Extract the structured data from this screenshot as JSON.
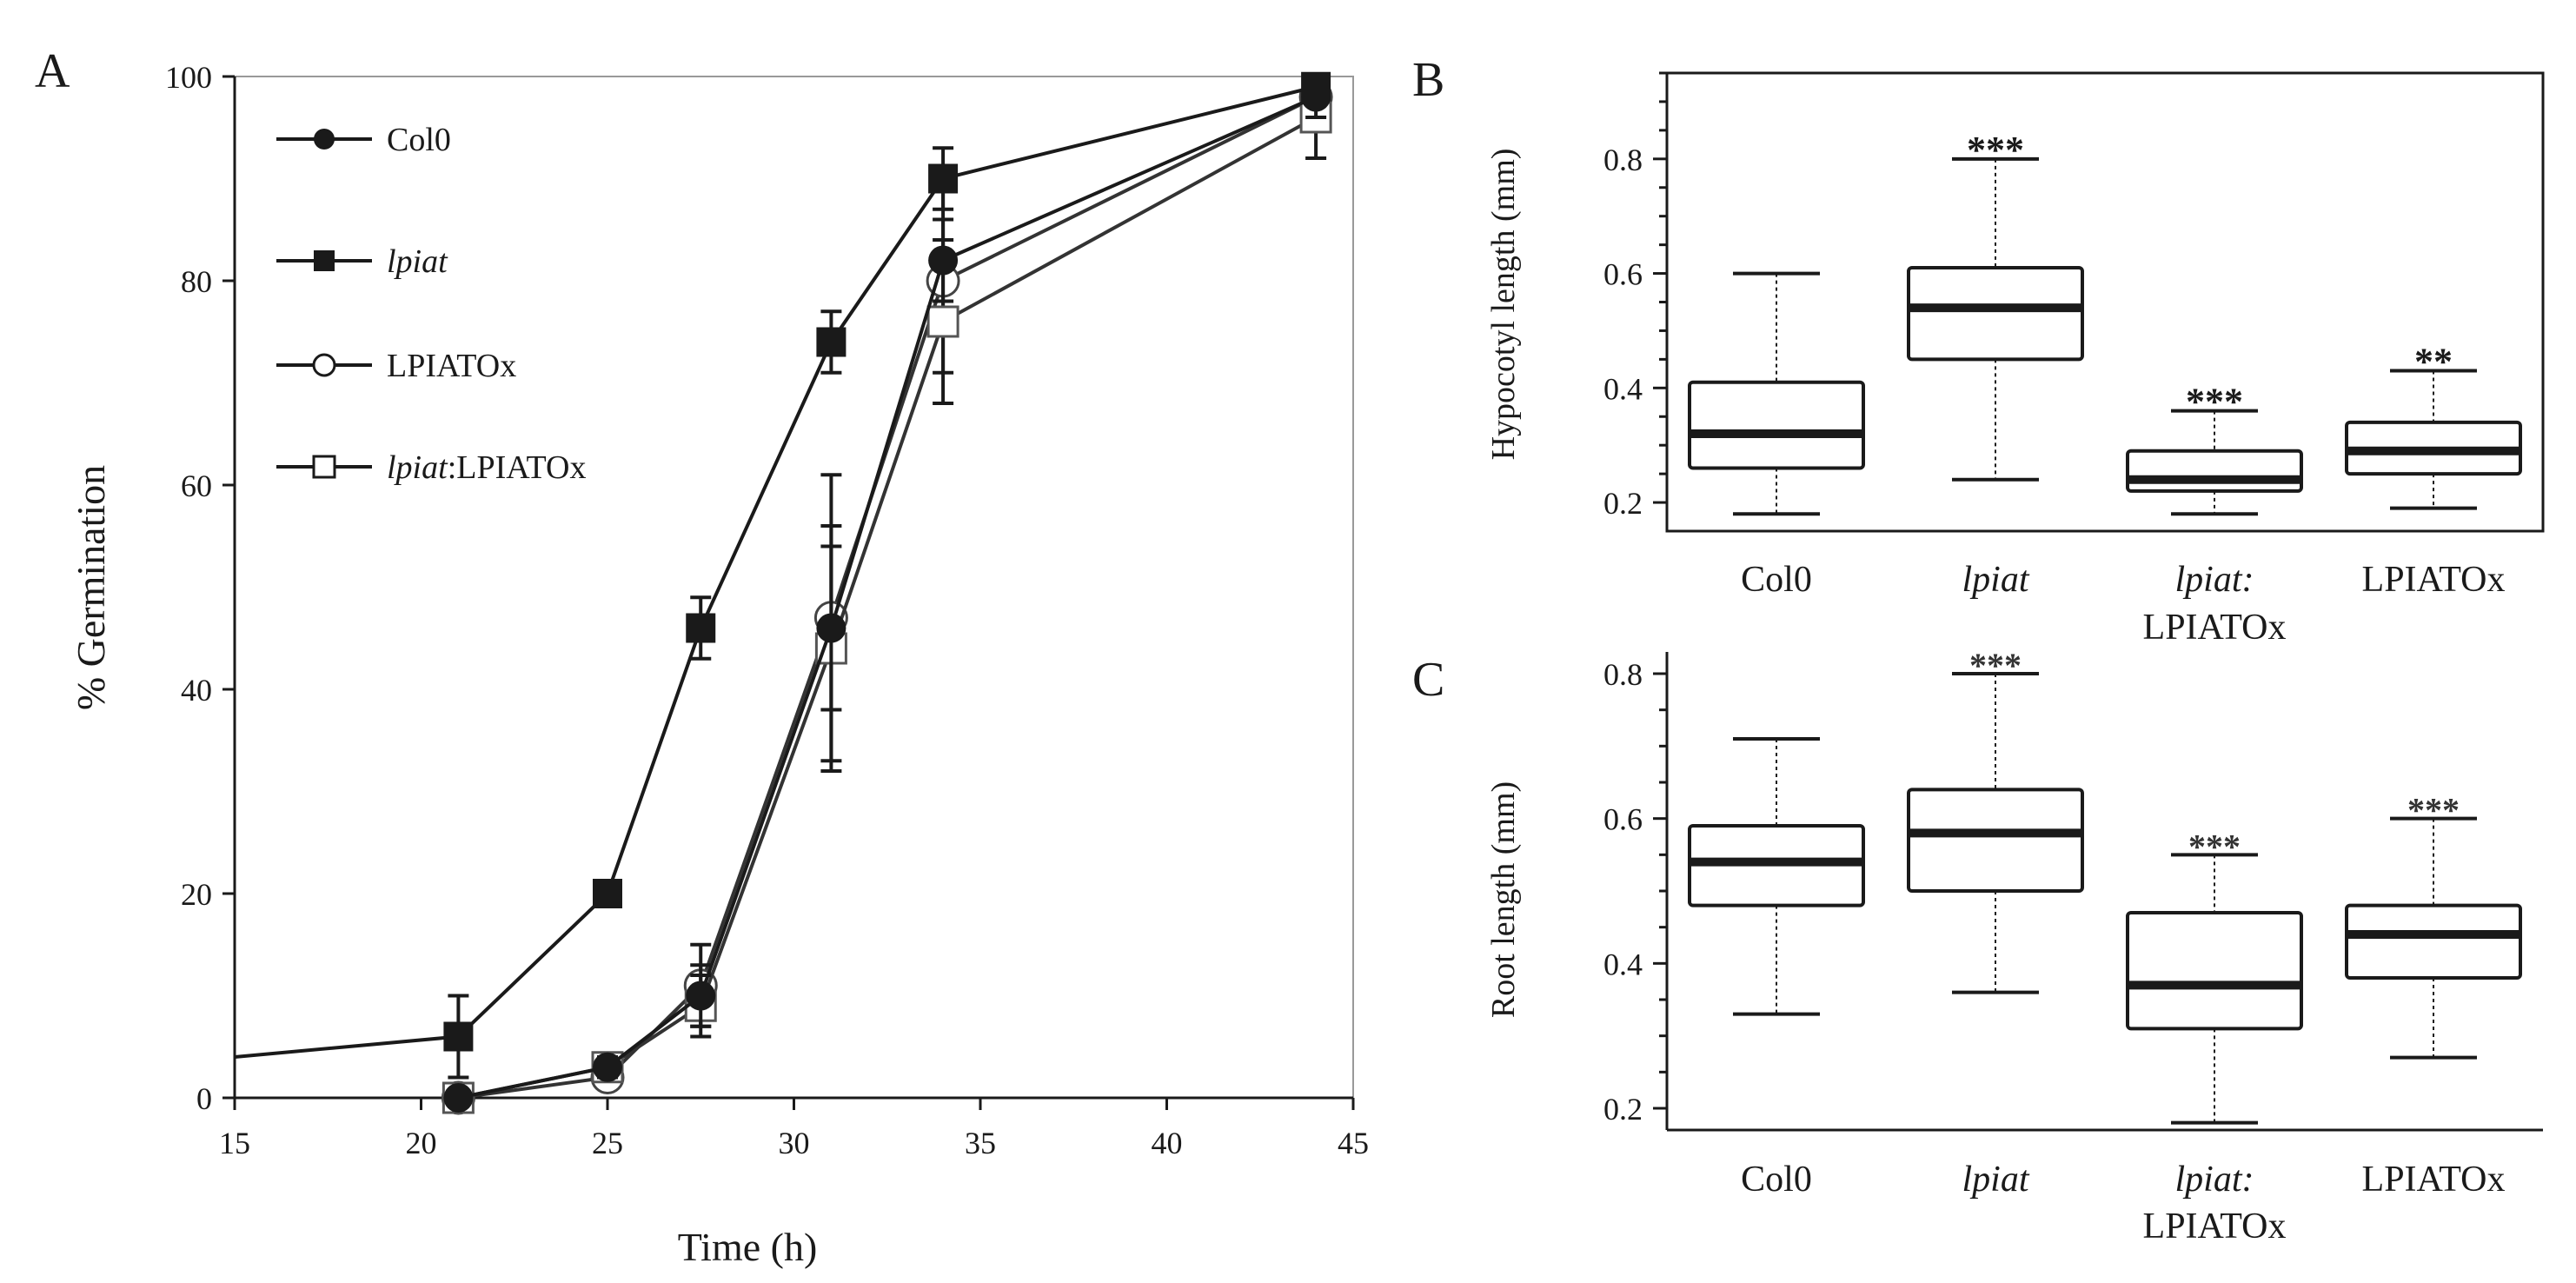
{
  "colors": {
    "ink": "#1a1a1a",
    "background": "#ffffff"
  },
  "chart_data": [
    {
      "panel": "A",
      "type": "line",
      "title": "",
      "xlabel": "Time (h)",
      "ylabel": "% Germination",
      "xlim": [
        15,
        45
      ],
      "ylim": [
        0,
        100
      ],
      "xticks": [
        15,
        20,
        25,
        30,
        35,
        40,
        45
      ],
      "yticks": [
        0,
        20,
        40,
        60,
        80,
        100
      ],
      "grid": false,
      "legend_position": "top-left",
      "series": [
        {
          "name": "Col0",
          "name_italic": "",
          "name_rest": "Col0",
          "marker": "filled-circle",
          "x": [
            21,
            25,
            27.5,
            31,
            34,
            44
          ],
          "y": [
            0,
            3,
            10,
            46,
            82,
            98
          ],
          "err": [
            0,
            1,
            3,
            8,
            4,
            2
          ]
        },
        {
          "name": "lpiat",
          "name_italic": "lpiat",
          "name_rest": "",
          "marker": "filled-square",
          "x": [
            15,
            21,
            25,
            27.5,
            31,
            34,
            44
          ],
          "y": [
            4,
            6,
            20,
            46,
            74,
            90,
            99
          ],
          "err": [
            0,
            4,
            1,
            3,
            3,
            3,
            1
          ]
        },
        {
          "name": "LPIATOx",
          "name_italic": "",
          "name_rest": "LPIATOx",
          "marker": "open-circle",
          "x": [
            21,
            25,
            27.5,
            31,
            34,
            44
          ],
          "y": [
            0,
            2,
            11,
            47,
            80,
            98
          ],
          "err": [
            0,
            1,
            4,
            14,
            9,
            2
          ]
        },
        {
          "name": "lpiat:LPIATOx",
          "name_italic": "lpiat",
          "name_rest": ":LPIATOx",
          "marker": "open-square",
          "x": [
            21,
            25,
            27.5,
            31,
            34,
            44
          ],
          "y": [
            0,
            3,
            9,
            44,
            76,
            96
          ],
          "err": [
            0,
            1,
            3,
            12,
            8,
            4
          ]
        }
      ]
    },
    {
      "panel": "B",
      "type": "box",
      "ylabel": "Hypocotyl length (mm)",
      "ylim": [
        0.15,
        0.95
      ],
      "yticks": [
        0.2,
        0.4,
        0.6,
        0.8
      ],
      "yticklabels": [
        "0.2",
        "0.4",
        "0.6",
        "0.8"
      ],
      "categories": [
        {
          "line1": "Col0",
          "line1_italic": false,
          "line2": ""
        },
        {
          "line1": "lpiat",
          "line1_italic": true,
          "line2": ""
        },
        {
          "line1": "lpiat:",
          "line1_italic": true,
          "line2": "LPIATOx"
        },
        {
          "line1": "LPIATOx",
          "line1_italic": false,
          "line2": ""
        }
      ],
      "boxes": [
        {
          "min": 0.18,
          "q1": 0.26,
          "median": 0.32,
          "q3": 0.41,
          "max": 0.6,
          "sig": ""
        },
        {
          "min": 0.24,
          "q1": 0.45,
          "median": 0.54,
          "q3": 0.61,
          "max": 0.8,
          "sig": "***"
        },
        {
          "min": 0.18,
          "q1": 0.22,
          "median": 0.24,
          "q3": 0.29,
          "max": 0.36,
          "sig": "***"
        },
        {
          "min": 0.19,
          "q1": 0.25,
          "median": 0.29,
          "q3": 0.34,
          "max": 0.43,
          "sig": "**"
        }
      ]
    },
    {
      "panel": "C",
      "type": "box",
      "ylabel": "Root length (mm)",
      "ylim": [
        0.17,
        0.83
      ],
      "yticks": [
        0.2,
        0.4,
        0.6,
        0.8
      ],
      "yticklabels": [
        "0.2",
        "0.4",
        "0.6",
        "0.8"
      ],
      "categories": [
        {
          "line1": "Col0",
          "line1_italic": false,
          "line2": ""
        },
        {
          "line1": "lpiat",
          "line1_italic": true,
          "line2": ""
        },
        {
          "line1": "lpiat:",
          "line1_italic": true,
          "line2": "LPIATOx"
        },
        {
          "line1": "LPIATOx",
          "line1_italic": false,
          "line2": ""
        }
      ],
      "boxes": [
        {
          "min": 0.33,
          "q1": 0.48,
          "median": 0.54,
          "q3": 0.59,
          "max": 0.71,
          "sig": ""
        },
        {
          "min": 0.36,
          "q1": 0.5,
          "median": 0.58,
          "q3": 0.64,
          "max": 0.8,
          "sig": "***"
        },
        {
          "min": 0.18,
          "q1": 0.31,
          "median": 0.37,
          "q3": 0.47,
          "max": 0.55,
          "sig": "***"
        },
        {
          "min": 0.27,
          "q1": 0.38,
          "median": 0.44,
          "q3": 0.48,
          "max": 0.6,
          "sig": "***"
        }
      ]
    }
  ]
}
